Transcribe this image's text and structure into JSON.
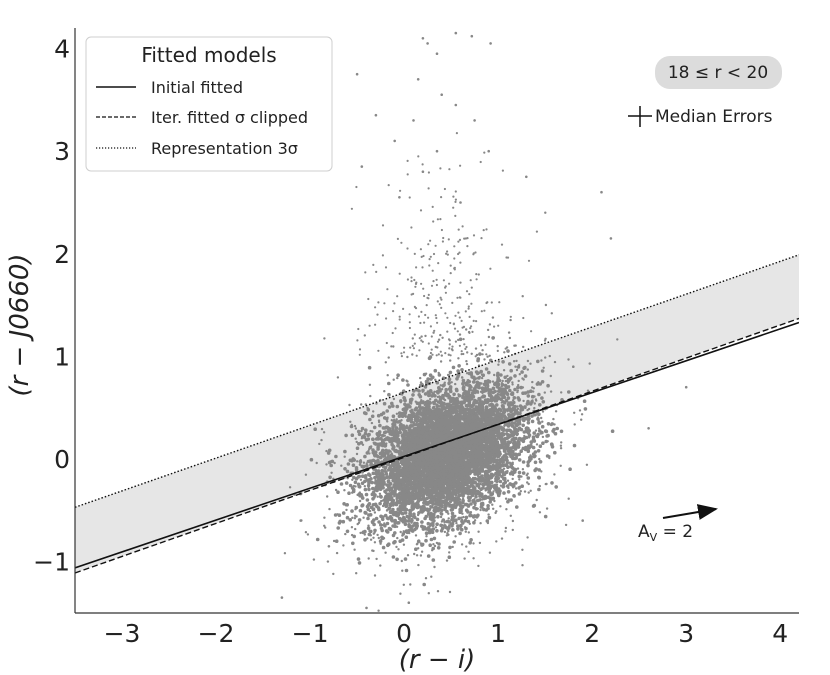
{
  "chart_data": {
    "type": "scatter",
    "xlabel": "(r − i)",
    "ylabel": "(r − J0660)",
    "xlim": [
      -3.5,
      4.2
    ],
    "ylim": [
      -1.5,
      4.2
    ],
    "xticks": [
      -3,
      -2,
      -1,
      0,
      1,
      2,
      3,
      4
    ],
    "xtick_labels": [
      "−3",
      "−2",
      "−1",
      "0",
      "1",
      "2",
      "3",
      "4"
    ],
    "yticks": [
      -1,
      0,
      1,
      2,
      3,
      4
    ],
    "ytick_labels": [
      "−1",
      "0",
      "1",
      "2",
      "3",
      "4"
    ],
    "grid": false,
    "legend": {
      "title": "Fitted models",
      "placement": "top-left",
      "entries": [
        {
          "label": "Initial fitted",
          "style": "solid"
        },
        {
          "label": "Iter. fitted σ clipped",
          "style": "dashed"
        },
        {
          "label": "Representation 3σ",
          "style": "dotted"
        }
      ]
    },
    "lines": [
      {
        "label": "Initial fitted",
        "style": "solid",
        "x": [
          -3.5,
          4.2
        ],
        "y": [
          -1.06,
          1.33
        ]
      },
      {
        "label": "Iter. fitted σ clipped",
        "style": "dashed",
        "x": [
          -3.5,
          4.2
        ],
        "y": [
          -1.11,
          1.37
        ]
      },
      {
        "label": "Representation 3σ",
        "style": "dotted",
        "x": [
          -3.5,
          4.2
        ],
        "y": [
          -0.47,
          1.99
        ]
      }
    ],
    "band": {
      "x": [
        -3.5,
        4.2
      ],
      "y_lower": [
        -1.11,
        1.37
      ],
      "y_upper": [
        -0.47,
        1.99
      ],
      "color": "#e6e6e6"
    },
    "scatter": {
      "color": "#888888",
      "core_center": [
        0.45,
        0.05
      ],
      "core_spread": [
        0.55,
        0.5
      ],
      "extremes": [
        {
          "x": 0.2,
          "y": 4.1
        },
        {
          "x": 0.25,
          "y": 4.05
        },
        {
          "x": 0.35,
          "y": 3.95
        },
        {
          "x": 0.55,
          "y": 4.15
        },
        {
          "x": 0.72,
          "y": 4.12
        },
        {
          "x": 0.92,
          "y": 4.05
        },
        {
          "x": -0.5,
          "y": 3.75
        },
        {
          "x": 0.15,
          "y": 3.7
        },
        {
          "x": 0.4,
          "y": 3.55
        },
        {
          "x": -0.3,
          "y": 3.35
        },
        {
          "x": 0.1,
          "y": 3.3
        },
        {
          "x": 0.55,
          "y": 3.45
        },
        {
          "x": 0.75,
          "y": 3.3
        },
        {
          "x": -0.1,
          "y": 3.1
        },
        {
          "x": 0.35,
          "y": 3.0
        },
        {
          "x": 0.9,
          "y": 3.0
        },
        {
          "x": -0.45,
          "y": 2.85
        },
        {
          "x": 0.2,
          "y": 2.8
        },
        {
          "x": 1.3,
          "y": 2.75
        },
        {
          "x": 2.1,
          "y": 2.6
        },
        {
          "x": 2.2,
          "y": 2.15
        },
        {
          "x": -0.05,
          "y": 2.55
        },
        {
          "x": 0.6,
          "y": 2.5
        },
        {
          "x": -1.3,
          "y": -1.35
        },
        {
          "x": -0.4,
          "y": -1.45
        },
        {
          "x": 0.05,
          "y": -1.4
        },
        {
          "x": 1.8,
          "y": 0.9
        },
        {
          "x": 3.0,
          "y": 0.7
        },
        {
          "x": 2.6,
          "y": 0.3
        },
        {
          "x": -1.1,
          "y": -0.6
        },
        {
          "x": -0.8,
          "y": -0.85
        },
        {
          "x": 1.9,
          "y": -0.6
        }
      ]
    },
    "annotations": {
      "magnitude_range": "18  ≤  r < 20",
      "median_errors": "Median Errors",
      "reddening_label": "A",
      "reddening_sub": "V",
      "reddening_value": " = 2"
    }
  }
}
